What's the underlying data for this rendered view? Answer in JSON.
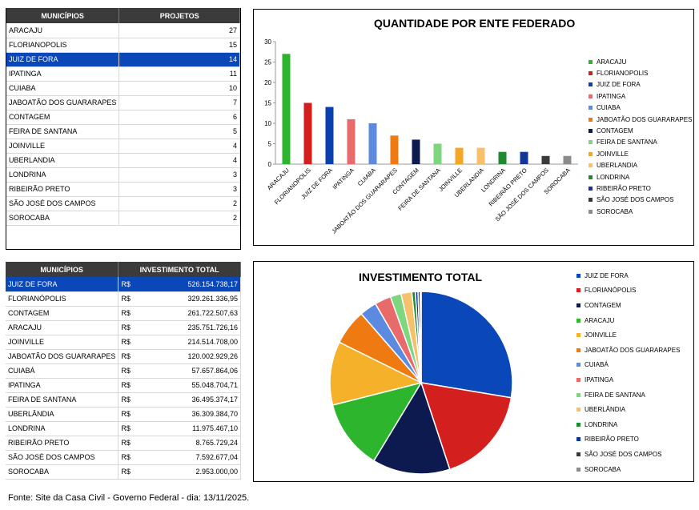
{
  "table1": {
    "headers": [
      "MUNICÍPIOS",
      "PROJETOS"
    ],
    "rows": [
      [
        "ARACAJU",
        "27"
      ],
      [
        "FLORIANOPOLIS",
        "15"
      ],
      [
        "JUIZ DE FORA",
        "14"
      ],
      [
        "IPATINGA",
        "11"
      ],
      [
        "CUIABA",
        "10"
      ],
      [
        "JABOATÃO DOS GUARARAPES",
        "7"
      ],
      [
        "CONTAGEM",
        "6"
      ],
      [
        "FEIRA DE SANTANA",
        "5"
      ],
      [
        "JOINVILLE",
        "4"
      ],
      [
        "UBERLANDIA",
        "4"
      ],
      [
        "LONDRINA",
        "3"
      ],
      [
        "RIBEIRÃO PRETO",
        "3"
      ],
      [
        "SÃO JOSÉ DOS CAMPOS",
        "2"
      ],
      [
        "SOROCABA",
        "2"
      ]
    ],
    "selected_index": 2
  },
  "table2": {
    "headers": [
      "MUNICÍPIOS",
      "INVESTIMENTO TOTAL"
    ],
    "currency": "R$",
    "rows": [
      [
        "JUIZ DE FORA",
        "526.154.738,17"
      ],
      [
        "FLORIANÓPOLIS",
        "329.261.336,95"
      ],
      [
        "CONTAGEM",
        "261.722.507,63"
      ],
      [
        "ARACAJU",
        "235.751.726,16"
      ],
      [
        "JOINVILLE",
        "214.514.708,00"
      ],
      [
        "JABOATÃO DOS GUARARAPES",
        "120.002.929,26"
      ],
      [
        "CUIABÁ",
        "57.657.864,06"
      ],
      [
        "IPATINGA",
        "55.048.704,71"
      ],
      [
        "FEIRA DE SANTANA",
        "36.495.374,17"
      ],
      [
        "UBERLÂNDIA",
        "36.309.384,70"
      ],
      [
        "LONDRINA",
        "11.975.467,10"
      ],
      [
        "RIBEIRÃO PRETO",
        "8.765.729,24"
      ],
      [
        "SÃO JOSÉ DOS CAMPOS",
        "7.592.677,04"
      ],
      [
        "SOROCABA",
        "2.953.000,00"
      ]
    ],
    "selected_index": 0
  },
  "colors": [
    "#2db52d",
    "#d41f1f",
    "#0a3fb0",
    "#e86a6a",
    "#5b8ae0",
    "#f07a12",
    "#0d1a4f",
    "#7ed67e",
    "#f5a623",
    "#f7c16b",
    "#1e8c2e",
    "#12359a",
    "#3a3a3a",
    "#8c8c8c"
  ],
  "pie_colors": [
    "#0a47b8",
    "#d41f1f",
    "#0d1a4f",
    "#2db52d",
    "#f5b12a",
    "#f07a12",
    "#5b8ae0",
    "#e86a6a",
    "#7ed67e",
    "#f7c16b",
    "#1e8c2e",
    "#12359a",
    "#3a3a3a",
    "#8c8c8c"
  ],
  "fonte": "Fonte:  Site da Casa Civil - Governo Federal - dia: 13/11/2025.",
  "chart_data": [
    {
      "type": "bar",
      "title": "QUANTIDADE POR ENTE FEDERADO",
      "categories": [
        "ARACAJU",
        "FLORIANOPOLIS",
        "JUIZ DE FORA",
        "IPATINGA",
        "CUIABA",
        "JABOATÃO DOS GUARARAPES",
        "CONTAGEM",
        "FEIRA DE SANTANA",
        "JOINVILLE",
        "UBERLANDIA",
        "LONDRINA",
        "RIBEIRÃO PRETO",
        "SÃO JOSÉ DOS CAMPOS",
        "SOROCABA"
      ],
      "values": [
        27,
        15,
        14,
        11,
        10,
        7,
        6,
        5,
        4,
        4,
        3,
        3,
        2,
        2
      ],
      "ylim": [
        0,
        30
      ],
      "yticks": [
        0,
        5,
        10,
        15,
        20,
        25,
        30
      ],
      "legend": "right"
    },
    {
      "type": "pie",
      "title": "INVESTIMENTO TOTAL",
      "categories": [
        "JUIZ DE FORA",
        "FLORIANÓPOLIS",
        "CONTAGEM",
        "ARACAJU",
        "JOINVILLE",
        "JABOATÃO DOS GUARARAPES",
        "CUIABÁ",
        "IPATINGA",
        "FEIRA DE SANTANA",
        "UBERLÂNDIA",
        "LONDRINA",
        "RIBEIRÃO PRETO",
        "SÃO JOSÉ DOS CAMPOS",
        "SOROCABA"
      ],
      "values": [
        526154738.17,
        329261336.95,
        261722507.63,
        235751726.16,
        214514708.0,
        120002929.26,
        57657864.06,
        55048704.71,
        36495374.17,
        36309384.7,
        11975467.1,
        8765729.24,
        7592677.04,
        2953000.0
      ],
      "legend": "right"
    }
  ]
}
